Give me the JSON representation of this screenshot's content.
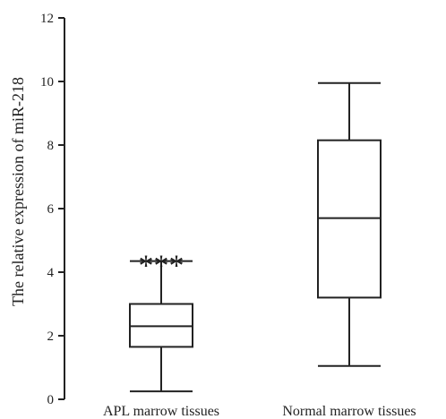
{
  "chart_data": {
    "type": "box",
    "title": "",
    "xlabel": "",
    "ylabel": "The relative expression of miR-218",
    "ylim": [
      0,
      12
    ],
    "yticks": [
      "0",
      "2",
      "4",
      "6",
      "8",
      "10",
      "12"
    ],
    "categories": [
      "APL marrow tissues",
      "Normal marrow tissues"
    ],
    "boxes": [
      {
        "min": 0.25,
        "q1": 1.65,
        "median": 2.3,
        "q3": 3.0,
        "max": 4.35,
        "annotation": "***"
      },
      {
        "min": 1.05,
        "q1": 3.2,
        "median": 5.7,
        "q3": 8.15,
        "max": 9.95,
        "annotation": ""
      }
    ],
    "grid": false,
    "color": "#222222"
  }
}
